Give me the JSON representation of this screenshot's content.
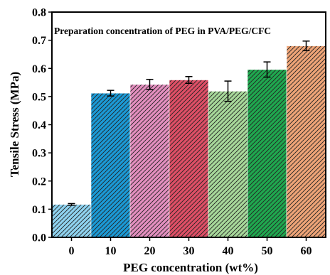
{
  "chart_data": {
    "type": "bar",
    "title": "Preparation concentration of PEG in PVA/PEG/CFC",
    "xlabel": "PEG concentration (wt%)",
    "ylabel": "Tensile Stress (MPa)",
    "categories": [
      "0",
      "10",
      "20",
      "30",
      "40",
      "50",
      "60"
    ],
    "values": [
      0.117,
      0.512,
      0.543,
      0.559,
      0.519,
      0.596,
      0.68
    ],
    "errors": [
      0.003,
      0.01,
      0.018,
      0.012,
      0.036,
      0.027,
      0.017
    ],
    "colors": [
      "#8fd3f0",
      "#1b9ad6",
      "#e48fbf",
      "#df4f66",
      "#a7d89a",
      "#1fa84f",
      "#eea477"
    ],
    "ylim": [
      0.0,
      0.8
    ],
    "yticks": [
      "0.0",
      "0.1",
      "0.2",
      "0.3",
      "0.4",
      "0.5",
      "0.6",
      "0.7",
      "0.8"
    ],
    "hatch": "diagonal",
    "grid": false,
    "legend": "none"
  }
}
